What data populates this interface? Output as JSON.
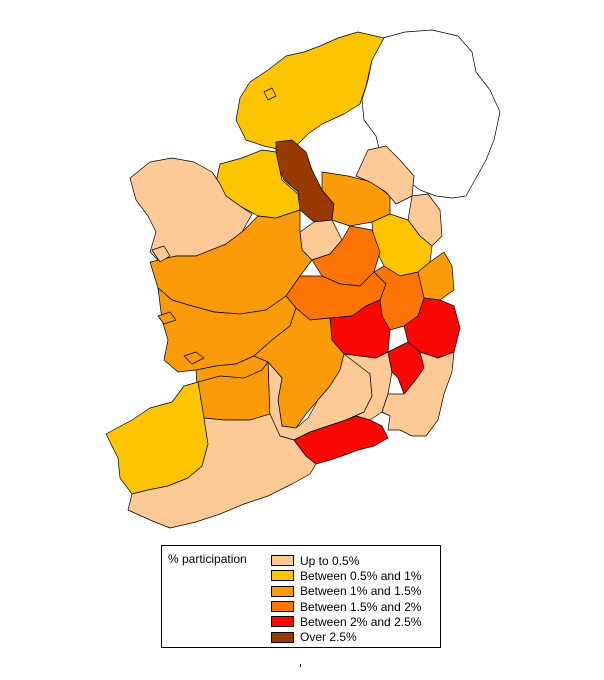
{
  "legend": {
    "title": "% participation",
    "classes": [
      {
        "label": "Up to 0.5%",
        "color": "#fdc996"
      },
      {
        "label": "Between 0.5% and 1%",
        "color": "#fdc501"
      },
      {
        "label": "Between 1% and 1.5%",
        "color": "#fc9b09"
      },
      {
        "label": "Between 1.5% and 2%",
        "color": "#fc7406"
      },
      {
        "label": "Between 2% and 2.5%",
        "color": "#fb0804"
      },
      {
        "label": "Over 2.5%",
        "color": "#9a3a03"
      }
    ],
    "no_data_color": "#ffffff"
  },
  "regions": [
    {
      "name": "northern-ireland",
      "class": -1
    },
    {
      "name": "donegal",
      "class": 1
    },
    {
      "name": "donegal-tongue",
      "class": 5
    },
    {
      "name": "sligo-leitrim-north",
      "class": 1
    },
    {
      "name": "cavan",
      "class": 2
    },
    {
      "name": "monaghan",
      "class": 0
    },
    {
      "name": "louth",
      "class": 0
    },
    {
      "name": "meath",
      "class": 1
    },
    {
      "name": "longford",
      "class": 0
    },
    {
      "name": "westmeath",
      "class": 3
    },
    {
      "name": "mayo",
      "class": 0
    },
    {
      "name": "roscommon",
      "class": 2
    },
    {
      "name": "dublin",
      "class": 2
    },
    {
      "name": "offaly",
      "class": 3
    },
    {
      "name": "kildare",
      "class": 3
    },
    {
      "name": "wicklow",
      "class": 4
    },
    {
      "name": "laois",
      "class": 4
    },
    {
      "name": "galway",
      "class": 2
    },
    {
      "name": "clare",
      "class": 2
    },
    {
      "name": "tipperary-north",
      "class": 2
    },
    {
      "name": "tipperary-south",
      "class": 0
    },
    {
      "name": "kilkenny",
      "class": 0
    },
    {
      "name": "carlow",
      "class": 4
    },
    {
      "name": "wexford",
      "class": 0
    },
    {
      "name": "limerick",
      "class": 2
    },
    {
      "name": "kerry",
      "class": 1
    },
    {
      "name": "cork",
      "class": 0
    },
    {
      "name": "waterford",
      "class": 4
    }
  ]
}
